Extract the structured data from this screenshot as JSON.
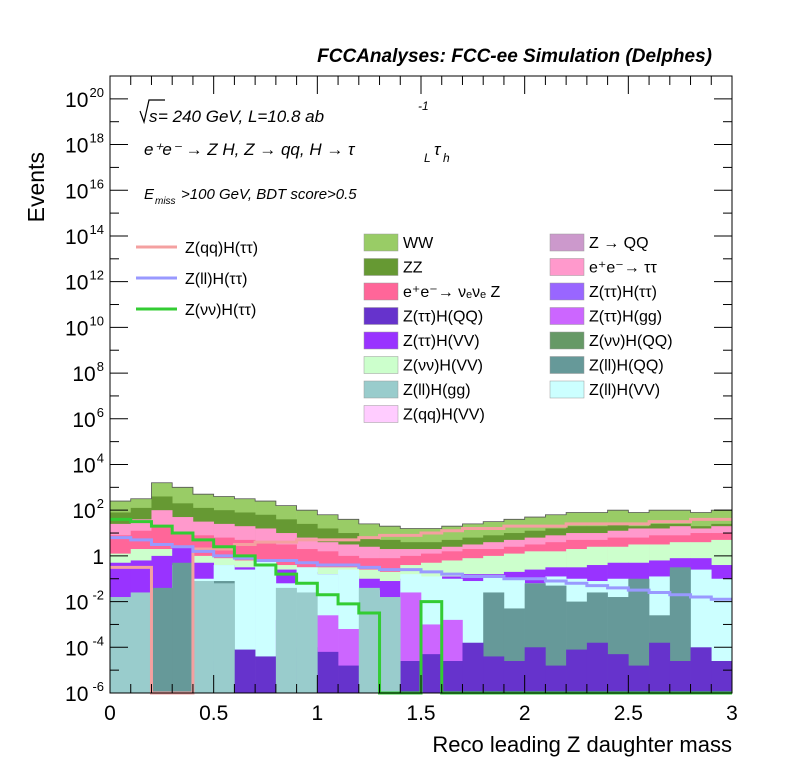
{
  "chart_data": {
    "type": "histogram-stacked",
    "title": "FCCAnalyses: FCC-ee Simulation (Delphes)",
    "xlabel": "Reco leading Z daughter mass",
    "ylabel": "Events",
    "xlim": [
      0,
      3
    ],
    "ylim_log10": [
      -6,
      21
    ],
    "log_y": true,
    "grid": false,
    "x_ticks": [
      {
        "v": 0,
        "label": "0"
      },
      {
        "v": 0.5,
        "label": "0.5"
      },
      {
        "v": 1,
        "label": "1"
      },
      {
        "v": 1.5,
        "label": "1.5"
      },
      {
        "v": 2,
        "label": "2"
      },
      {
        "v": 2.5,
        "label": "2.5"
      },
      {
        "v": 3,
        "label": "3"
      }
    ],
    "y_ticks": [
      {
        "e": -6,
        "base": "10",
        "exp": "-6"
      },
      {
        "e": -4,
        "base": "10",
        "exp": "-4"
      },
      {
        "e": -2,
        "base": "10",
        "exp": "-2"
      },
      {
        "e": 0,
        "base": "1",
        "exp": ""
      },
      {
        "e": 2,
        "base": "10",
        "exp": "2"
      },
      {
        "e": 4,
        "base": "10",
        "exp": "4"
      },
      {
        "e": 6,
        "base": "10",
        "exp": "6"
      },
      {
        "e": 8,
        "base": "10",
        "exp": "8"
      },
      {
        "e": 10,
        "base": "10",
        "exp": "10"
      },
      {
        "e": 12,
        "base": "10",
        "exp": "12"
      },
      {
        "e": 14,
        "base": "10",
        "exp": "14"
      },
      {
        "e": 16,
        "base": "10",
        "exp": "16"
      },
      {
        "e": 18,
        "base": "10",
        "exp": "18"
      },
      {
        "e": 20,
        "base": "10",
        "exp": "20"
      }
    ],
    "annotations": {
      "sqrt_s": "s",
      "energy": " = 240 GeV, L=10.8 ab",
      "lumi_exp": "-1",
      "process": "e⁺e⁻ → Z H, Z → qq, H → τ",
      "tau_sub1": "L",
      "tau_sym": "τ",
      "tau_sub2": "h",
      "cut_E": "E",
      "cut_sub": "miss",
      "cut_rest": ">100 GeV, BDT score>0.5"
    },
    "bin_width": 0.1,
    "top_envelope_log10": [
      2.4,
      2.5,
      3.2,
      3.0,
      2.7,
      2.6,
      2.5,
      2.4,
      2.2,
      2.0,
      1.8,
      1.6,
      1.4,
      1.3,
      1.2,
      1.2,
      1.3,
      1.4,
      1.5,
      1.6,
      1.7,
      1.8,
      1.9,
      1.9,
      2.0,
      1.9,
      2.0,
      2.0,
      1.9,
      2.0
    ],
    "stack_layers": [
      {
        "name": "Z(ll)H(gg)",
        "color": "#99cccc",
        "log10_tops": [
          -1.8,
          -1.6,
          -6,
          -6,
          -1.1,
          -1.2,
          -6,
          -6,
          -1.4,
          -1.6,
          -6,
          -6,
          -1.4,
          -1.8,
          -6,
          -6,
          -6,
          -6,
          -6,
          -6,
          -6,
          -6,
          -6,
          -6,
          -6,
          -6,
          -6,
          -6,
          -6,
          -6
        ]
      },
      {
        "name": "Z(ττ)H(QQ)",
        "color": "#6633cc",
        "log10_tops": [
          -6,
          -6,
          -6,
          -6,
          -4.6,
          -6,
          -4.1,
          -4.4,
          -4.6,
          -4.0,
          -4.2,
          -4.8,
          -6,
          -6,
          -4.6,
          -4.3,
          -4.6,
          -3.8,
          -4.4,
          -4.6,
          -4.0,
          -4.8,
          -4.1,
          -3.8,
          -4.3,
          -4.8,
          -3.8,
          -4.6,
          -4.0,
          -4.6
        ]
      },
      {
        "name": "Z(ττ)H(gg)",
        "color": "#cc66ff",
        "log10_tops": [
          -6,
          -6,
          -6,
          -6,
          -6,
          -6,
          -6,
          -6,
          -2.8,
          -3.6,
          -2.6,
          -3.2,
          -6,
          -6,
          -1.6,
          -3.0,
          -2.8,
          -6,
          -6,
          -6,
          -6,
          -6,
          -6,
          -6,
          -6,
          -6,
          -6,
          -6,
          -6,
          -6
        ]
      },
      {
        "name": "Z(ll)H(QQ)",
        "color": "#669999",
        "log10_tops": [
          -6,
          -6,
          -1.4,
          -0.3,
          -6,
          -1.1,
          -6,
          -6,
          -6,
          -6,
          -6,
          -6,
          -6,
          -6,
          -6,
          -6,
          -6,
          -6,
          -1.6,
          -2.3,
          -1.2,
          -1.3,
          -2.0,
          -1.6,
          -1.8,
          -1.0,
          -2.6,
          -0.5,
          -6,
          -6
        ]
      },
      {
        "name": "Z(ll)H(VV)",
        "color": "#ccffff",
        "log10_tops": [
          -6,
          -6,
          -6,
          -0.4,
          -1.0,
          -0.4,
          -0.6,
          -0.2,
          -1.2,
          -0.5,
          -0.8,
          -0.6,
          -1.5,
          -6,
          -0.8,
          -0.9,
          -1.0,
          -1.1,
          -0.9,
          -1.0,
          -1.2,
          -0.9,
          -1.0,
          -1.1,
          -1.0,
          -1.2,
          -0.9,
          -1.0,
          -0.6,
          -1.0
        ]
      },
      {
        "name": "Z(ττ)H(VV)",
        "color": "#9933ff",
        "log10_tops": [
          -0.3,
          -0.2,
          0.0,
          0.4,
          -0.3,
          -0.4,
          -0.5,
          -0.5,
          -0.6,
          -0.7,
          -0.8,
          -0.9,
          -1.0,
          -1.1,
          -1.0,
          -1.0,
          -0.9,
          -0.8,
          -0.8,
          -0.7,
          -0.6,
          -0.5,
          -0.5,
          -0.4,
          -0.3,
          -0.3,
          -0.2,
          -0.1,
          -0.1,
          -0.4
        ]
      },
      {
        "name": "Z(vv)H(VV)",
        "color": "#ccffcc",
        "log10_tops": [
          0.1,
          0.3,
          0.3,
          0.1,
          0.0,
          -0.1,
          -0.2,
          -0.3,
          -0.4,
          -0.5,
          -0.5,
          -0.5,
          -0.6,
          -0.7,
          -0.4,
          -0.3,
          -0.2,
          -0.1,
          0.0,
          0.1,
          0.2,
          0.2,
          0.3,
          0.4,
          0.4,
          0.5,
          0.5,
          0.6,
          0.6,
          0.7
        ]
      },
      {
        "name": "e⁺e⁻→ νₑνₑ Z",
        "color": "#ff6699",
        "log10_tops": [
          0.9,
          1.1,
          1.3,
          1.0,
          0.9,
          0.8,
          0.7,
          0.6,
          0.5,
          0.3,
          0.2,
          0.0,
          -0.1,
          -0.1,
          0.0,
          0.1,
          0.2,
          0.3,
          0.3,
          0.4,
          0.5,
          0.6,
          0.7,
          0.7,
          0.8,
          0.8,
          0.9,
          0.9,
          1.0,
          1.0
        ]
      },
      {
        "name": "e⁺e⁻→ ττ",
        "color": "#ff99cc",
        "log10_tops": [
          1.4,
          1.6,
          2.0,
          1.7,
          1.5,
          1.4,
          1.3,
          1.2,
          1.0,
          0.8,
          0.6,
          0.5,
          0.4,
          0.3,
          0.3,
          0.3,
          0.4,
          0.5,
          0.6,
          0.7,
          0.8,
          0.9,
          1.0,
          1.0,
          1.1,
          1.2,
          1.2,
          1.3,
          1.2,
          1.3
        ]
      },
      {
        "name": "ZZ",
        "color": "#669933",
        "log10_tops": [
          1.9,
          2.1,
          2.6,
          2.3,
          2.1,
          2.0,
          1.9,
          1.8,
          1.6,
          1.4,
          1.2,
          1.0,
          0.8,
          0.7,
          0.6,
          0.6,
          0.7,
          0.8,
          0.9,
          1.0,
          1.1,
          1.2,
          1.3,
          1.3,
          1.4,
          1.3,
          1.4,
          1.4,
          1.3,
          1.4
        ]
      },
      {
        "name": "WW",
        "color": "#99cc66",
        "log10_tops": [
          2.4,
          2.5,
          3.2,
          3.0,
          2.7,
          2.6,
          2.5,
          2.4,
          2.2,
          2.0,
          1.8,
          1.6,
          1.4,
          1.3,
          1.2,
          1.2,
          1.3,
          1.4,
          1.5,
          1.6,
          1.7,
          1.8,
          1.9,
          1.9,
          2.0,
          1.9,
          2.0,
          2.0,
          1.9,
          2.0
        ]
      }
    ],
    "signal_lines": [
      {
        "name": "Z(qq)H(ττ)",
        "color": "#f4a0a0",
        "log10_values": [
          -0.5,
          -0.5,
          -6,
          -6,
          0.3,
          0.3,
          0.5,
          0.6,
          0.6,
          0.7,
          0.7,
          0.7,
          0.8,
          0.9,
          0.9,
          1.0,
          1.1,
          1.2,
          1.2,
          1.3,
          1.3,
          1.3,
          1.4,
          1.4,
          1.4,
          1.4,
          1.5,
          1.5,
          1.6,
          1.6
        ]
      },
      {
        "name": "Z(ll)H(ττ)",
        "color": "#9999ff",
        "log10_values": [
          0.8,
          0.7,
          0.5,
          0.4,
          0.2,
          0.0,
          -0.1,
          -0.2,
          -0.2,
          -0.3,
          -0.4,
          -0.4,
          -0.5,
          -0.6,
          -0.6,
          -0.7,
          -0.8,
          -0.9,
          -0.9,
          -1.0,
          -1.0,
          -1.1,
          -1.2,
          -1.3,
          -1.4,
          -1.5,
          -1.6,
          -1.7,
          -1.8,
          -1.9
        ]
      },
      {
        "name": "Z(vv)H(ττ)",
        "color": "#33cc33",
        "log10_values": [
          1.6,
          1.5,
          1.3,
          1.0,
          0.7,
          0.4,
          0.0,
          -0.4,
          -0.8,
          -1.2,
          -1.7,
          -2.1,
          -2.5,
          -6,
          -6,
          -2.0,
          -6,
          -6,
          -6,
          -6,
          -6,
          -6,
          -6,
          -6,
          -6,
          -6,
          -6,
          -6,
          -6,
          -6
        ]
      }
    ],
    "legend_lines": [
      {
        "name": "Z(qq)H(ττ)",
        "color": "#f4a0a0"
      },
      {
        "name": "Z(ll)H(ττ)",
        "color": "#9999ff"
      },
      {
        "name": "Z(νν)H(ττ)",
        "color": "#33cc33"
      }
    ],
    "legend_boxes_col1": [
      {
        "name": "WW",
        "color": "#99cc66"
      },
      {
        "name": "ZZ",
        "color": "#669933"
      },
      {
        "name": "e⁺e⁻→ νₑνₑ Z",
        "color": "#ff6699"
      },
      {
        "name": "Z(ττ)H(QQ)",
        "color": "#6633cc"
      },
      {
        "name": "Z(ττ)H(VV)",
        "color": "#9933ff"
      },
      {
        "name": "Z(νν)H(VV)",
        "color": "#ccffcc"
      },
      {
        "name": "Z(ll)H(gg)",
        "color": "#99cccc"
      },
      {
        "name": "Z(qq)H(VV)",
        "color": "#ffccff"
      }
    ],
    "legend_boxes_col2": [
      {
        "name": "Z → QQ",
        "color": "#cc99cc"
      },
      {
        "name": "e⁺e⁻→ ττ",
        "color": "#ff99cc"
      },
      {
        "name": "Z(ττ)H(ττ)",
        "color": "#9966ff"
      },
      {
        "name": "Z(ττ)H(gg)",
        "color": "#cc66ff"
      },
      {
        "name": "Z(νν)H(QQ)",
        "color": "#669966"
      },
      {
        "name": "Z(ll)H(QQ)",
        "color": "#669999"
      },
      {
        "name": "Z(ll)H(VV)",
        "color": "#ccffff"
      }
    ]
  }
}
